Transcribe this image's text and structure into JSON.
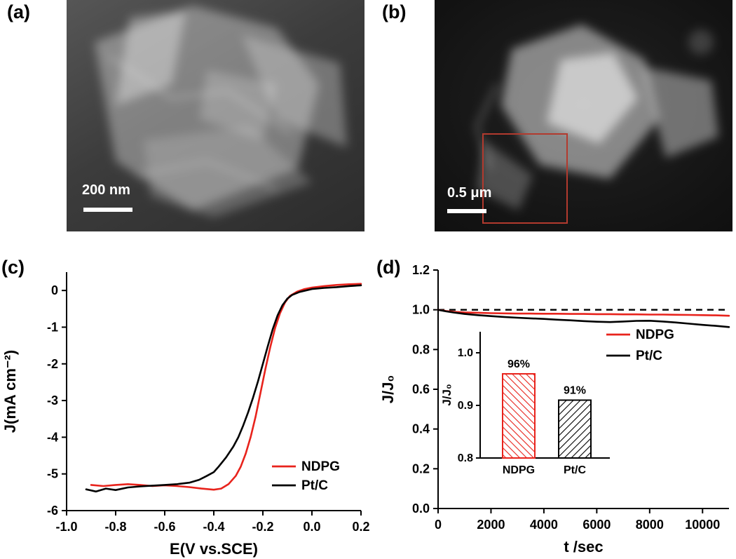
{
  "panels": {
    "a": {
      "label": "(a)",
      "scale_bar": "200 nm"
    },
    "b": {
      "label": "(b)",
      "scale_bar": "0.5 μm"
    },
    "c": {
      "label": "(c)"
    },
    "d": {
      "label": "(d)"
    }
  },
  "colors": {
    "ndpg": "#e8231c",
    "ptc": "#000000",
    "roi_box": "#b23a2e"
  },
  "chart_data": [
    {
      "id": "lsv",
      "type": "line",
      "title": "",
      "xlabel": "E(V vs.SCE)",
      "ylabel": "J(mA cm⁻²)",
      "xlim": [
        -1.0,
        0.2
      ],
      "ylim": [
        -6,
        0.5
      ],
      "grid": false,
      "legend_position": "lower-right",
      "xticks": {
        "values": [
          -1.0,
          -0.8,
          -0.6,
          -0.4,
          -0.2,
          0.0,
          0.2
        ],
        "labels": [
          "-1.0",
          "-0.8",
          "-0.6",
          "-0.4",
          "-0.2",
          "0.0",
          "0.2"
        ]
      },
      "yticks": {
        "values": [
          0,
          -1,
          -2,
          -3,
          -4,
          -5,
          -6
        ],
        "labels": [
          "0",
          "-1",
          "-2",
          "-3",
          "-4",
          "-5",
          "-6"
        ]
      },
      "series": [
        {
          "name": "NDPG",
          "color": "#e8231c",
          "x": [
            -0.9,
            -0.85,
            -0.8,
            -0.75,
            -0.7,
            -0.65,
            -0.6,
            -0.55,
            -0.5,
            -0.45,
            -0.4,
            -0.37,
            -0.34,
            -0.31,
            -0.29,
            -0.27,
            -0.25,
            -0.23,
            -0.21,
            -0.19,
            -0.17,
            -0.15,
            -0.13,
            -0.11,
            -0.09,
            -0.06,
            -0.03,
            0.0,
            0.05,
            0.1,
            0.15,
            0.2
          ],
          "y": [
            -5.3,
            -5.33,
            -5.3,
            -5.28,
            -5.3,
            -5.33,
            -5.31,
            -5.33,
            -5.36,
            -5.4,
            -5.43,
            -5.4,
            -5.28,
            -5.05,
            -4.8,
            -4.45,
            -4.0,
            -3.45,
            -2.8,
            -2.15,
            -1.55,
            -1.02,
            -0.62,
            -0.33,
            -0.15,
            -0.03,
            0.04,
            0.08,
            0.12,
            0.15,
            0.17,
            0.18
          ]
        },
        {
          "name": "Pt/C",
          "color": "#000000",
          "x": [
            -0.92,
            -0.88,
            -0.84,
            -0.8,
            -0.75,
            -0.7,
            -0.65,
            -0.6,
            -0.55,
            -0.5,
            -0.46,
            -0.43,
            -0.4,
            -0.38,
            -0.35,
            -0.32,
            -0.3,
            -0.28,
            -0.26,
            -0.24,
            -0.22,
            -0.2,
            -0.18,
            -0.16,
            -0.14,
            -0.12,
            -0.1,
            -0.08,
            -0.05,
            0.0,
            0.05,
            0.1,
            0.15,
            0.2
          ],
          "y": [
            -5.42,
            -5.48,
            -5.4,
            -5.44,
            -5.37,
            -5.34,
            -5.32,
            -5.3,
            -5.28,
            -5.24,
            -5.16,
            -5.06,
            -4.95,
            -4.8,
            -4.55,
            -4.25,
            -4.0,
            -3.68,
            -3.32,
            -2.92,
            -2.48,
            -2.0,
            -1.52,
            -1.06,
            -0.68,
            -0.4,
            -0.22,
            -0.12,
            -0.04,
            0.04,
            0.07,
            0.09,
            0.12,
            0.14
          ]
        }
      ]
    },
    {
      "id": "stability",
      "type": "line",
      "title": "",
      "xlabel": "t /sec",
      "ylabel": "J/J₀",
      "xlim": [
        0,
        11000
      ],
      "ylim": [
        0.0,
        1.2
      ],
      "grid": false,
      "refline": 1.0,
      "legend_position": "upper-right",
      "xticks": {
        "values": [
          0,
          2000,
          4000,
          6000,
          8000,
          10000
        ],
        "labels": [
          "0",
          "2000",
          "4000",
          "6000",
          "8000",
          "10000"
        ]
      },
      "yticks": {
        "values": [
          0.0,
          0.2,
          0.4,
          0.6,
          0.8,
          1.0,
          1.2
        ],
        "labels": [
          "0.0",
          "0.2",
          "0.4",
          "0.6",
          "0.8",
          "1.0",
          "1.2"
        ]
      },
      "x": [
        0,
        300,
        600,
        1000,
        1500,
        2000,
        2500,
        3000,
        3500,
        4000,
        4500,
        5000,
        5500,
        6000,
        6500,
        7000,
        7500,
        8000,
        8500,
        9000,
        9500,
        10000,
        10500,
        11000
      ],
      "series": [
        {
          "name": "NDPG",
          "color": "#e8231c",
          "y": [
            1.0,
            0.994,
            0.99,
            0.987,
            0.985,
            0.983,
            0.982,
            0.981,
            0.981,
            0.98,
            0.98,
            0.979,
            0.979,
            0.978,
            0.978,
            0.977,
            0.977,
            0.976,
            0.976,
            0.975,
            0.974,
            0.973,
            0.972,
            0.97
          ]
        },
        {
          "name": "Pt/C",
          "color": "#000000",
          "y": [
            1.0,
            0.992,
            0.986,
            0.979,
            0.973,
            0.968,
            0.964,
            0.96,
            0.957,
            0.954,
            0.95,
            0.947,
            0.943,
            0.94,
            0.938,
            0.941,
            0.944,
            0.945,
            0.941,
            0.936,
            0.93,
            0.924,
            0.919,
            0.913
          ]
        }
      ],
      "inset": {
        "type": "bar",
        "ylabel": "J/J₀",
        "ylim": [
          0.8,
          1.04
        ],
        "yticks": {
          "values": [
            0.8,
            0.9,
            1.0
          ],
          "labels": [
            "0.8",
            "0.9",
            "1.0"
          ]
        },
        "categories": [
          "NDPG",
          "Pt/C"
        ],
        "values": [
          0.96,
          0.91
        ],
        "value_labels": [
          "96%",
          "91%"
        ]
      }
    }
  ]
}
